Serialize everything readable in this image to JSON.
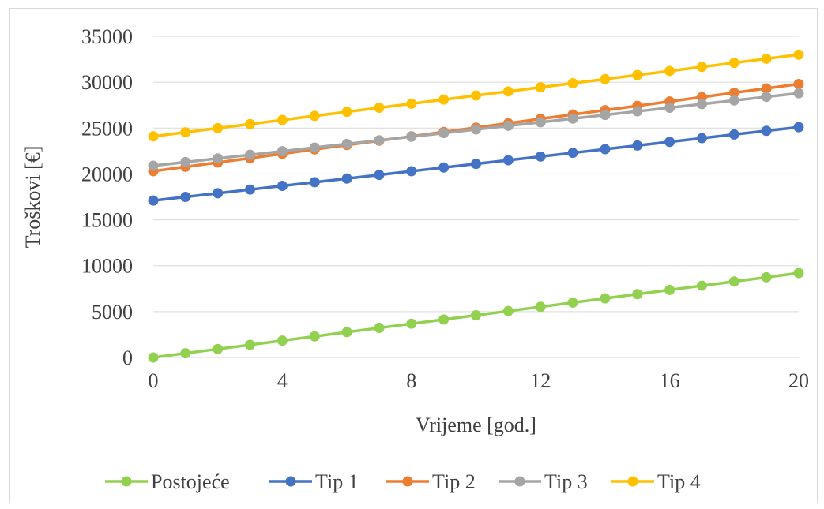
{
  "chart_data": {
    "type": "line",
    "xlabel": "Vrijeme [god.]",
    "ylabel": "Troškovi [€]",
    "xlim": [
      0,
      20
    ],
    "ylim": [
      0,
      35000
    ],
    "xticks": [
      0,
      4,
      8,
      12,
      16,
      20
    ],
    "yticks": [
      0,
      5000,
      10000,
      15000,
      20000,
      25000,
      30000,
      35000
    ],
    "grid": "horizontal",
    "legend_position": "bottom",
    "x": [
      0,
      1,
      2,
      3,
      4,
      5,
      6,
      7,
      8,
      9,
      10,
      11,
      12,
      13,
      14,
      15,
      16,
      17,
      18,
      19,
      20
    ],
    "series": [
      {
        "name": "Postojeće",
        "color": "#92d050",
        "values": [
          0,
          460,
          920,
          1380,
          1840,
          2300,
          2760,
          3220,
          3680,
          4140,
          4600,
          5060,
          5520,
          5980,
          6440,
          6900,
          7360,
          7820,
          8280,
          8740,
          9200
        ]
      },
      {
        "name": "Tip 1",
        "color": "#4472c4",
        "values": [
          17100,
          17500,
          17900,
          18300,
          18700,
          19100,
          19500,
          19900,
          20300,
          20700,
          21100,
          21500,
          21900,
          22300,
          22700,
          23100,
          23500,
          23900,
          24300,
          24700,
          25100
        ]
      },
      {
        "name": "Tip 2",
        "color": "#ed7d31",
        "values": [
          20300,
          20775,
          21250,
          21725,
          22200,
          22675,
          23150,
          23625,
          24100,
          24575,
          25050,
          25525,
          26000,
          26475,
          26950,
          27425,
          27900,
          28375,
          28850,
          29325,
          29800
        ]
      },
      {
        "name": "Tip 3",
        "color": "#a5a5a5",
        "values": [
          20900,
          21295,
          21690,
          22085,
          22480,
          22875,
          23270,
          23665,
          24060,
          24455,
          24850,
          25245,
          25640,
          26035,
          26430,
          26825,
          27220,
          27615,
          28010,
          28405,
          28800
        ]
      },
      {
        "name": "Tip 4",
        "color": "#ffc000",
        "values": [
          24100,
          24545,
          24990,
          25435,
          25880,
          26325,
          26770,
          27215,
          27660,
          28105,
          28550,
          28995,
          29440,
          29885,
          30330,
          30775,
          31220,
          31665,
          32110,
          32555,
          33000
        ]
      }
    ]
  }
}
